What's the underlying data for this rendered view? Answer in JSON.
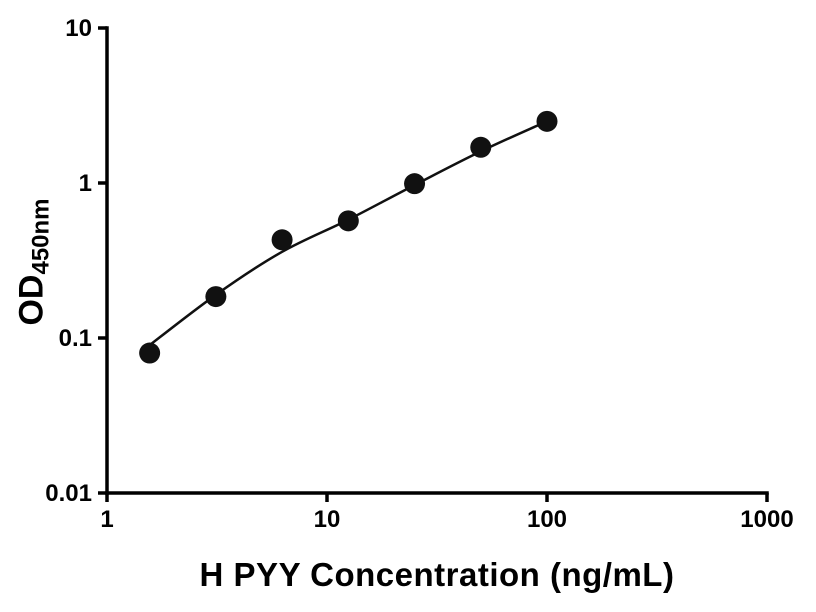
{
  "chart_data": {
    "type": "scatter",
    "title": "",
    "xlabel": "H PYY Concentration (ng/mL)",
    "ylabel": "OD",
    "ylabel_subscript": "450nm",
    "x_scale": "log",
    "y_scale": "log",
    "xlim": [
      1,
      1000
    ],
    "ylim": [
      0.01,
      10
    ],
    "x_ticks": [
      1,
      10,
      100,
      1000
    ],
    "x_tick_labels": [
      "1",
      "10",
      "100",
      "1000"
    ],
    "y_ticks": [
      10,
      1,
      0.1,
      0.01
    ],
    "y_tick_labels": [
      "10",
      "1",
      "0.1",
      "0.01"
    ],
    "grid": false,
    "legend": false,
    "series": [
      {
        "name": "standard-curve-points",
        "marker": "filled-circle",
        "x": [
          1.5625,
          3.125,
          6.25,
          12.5,
          25,
          50,
          100
        ],
        "y": [
          0.08,
          0.185,
          0.43,
          0.57,
          0.99,
          1.7,
          2.5
        ]
      }
    ],
    "fit_curve": [
      [
        1.5,
        0.086
      ],
      [
        3.125,
        0.19
      ],
      [
        6.25,
        0.36
      ],
      [
        12.5,
        0.58
      ],
      [
        25,
        0.97
      ],
      [
        50,
        1.6
      ],
      [
        100,
        2.5
      ]
    ],
    "colors": {
      "marker": "#111111",
      "curve": "#111111",
      "axis": "#000000",
      "background": "#ffffff"
    }
  }
}
